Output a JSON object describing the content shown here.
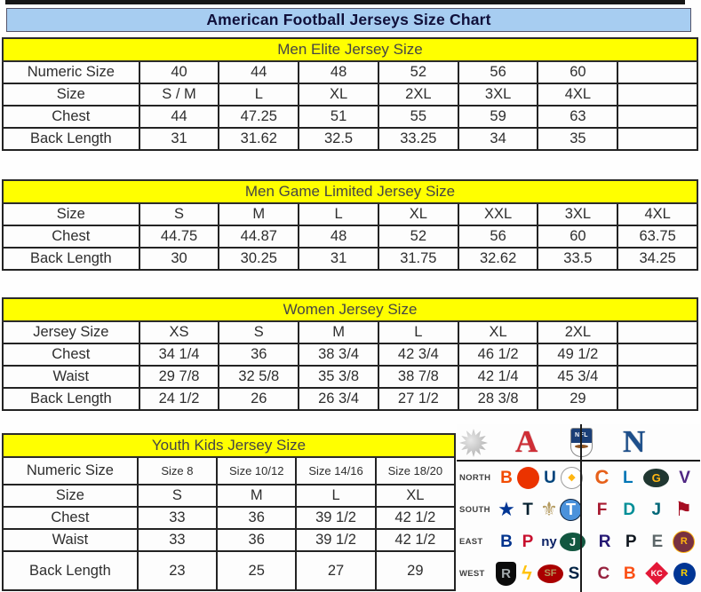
{
  "page": {
    "title": "American Football Jerseys Size Chart"
  },
  "colors": {
    "title_bar_bg": "#a7cdf1",
    "section_header_bg": "#ffff00",
    "table_border": "#232323",
    "text": "#2e2e2e",
    "afc_red": "#cf2e36",
    "nfc_blue": "#1d4f8b",
    "nfl_shield_blue": "#1b3f77"
  },
  "tables": [
    {
      "id": "men-elite",
      "header": "Men Elite Jersey Size",
      "rows": [
        {
          "label": "Numeric Size",
          "cells": [
            "40",
            "44",
            "48",
            "52",
            "56",
            "60",
            ""
          ]
        },
        {
          "label": "Size",
          "cells": [
            "S / M",
            "L",
            "XL",
            "2XL",
            "3XL",
            "4XL",
            ""
          ]
        },
        {
          "label": "Chest",
          "cells": [
            "44",
            "47.25",
            "51",
            "55",
            "59",
            "63",
            ""
          ]
        },
        {
          "label": "Back Length",
          "cells": [
            "31",
            "31.62",
            "32.5",
            "33.25",
            "34",
            "35",
            ""
          ]
        }
      ]
    },
    {
      "id": "men-game-limited",
      "header": "Men Game Limited Jersey Size",
      "rows": [
        {
          "label": "Size",
          "cells": [
            "S",
            "M",
            "L",
            "XL",
            "XXL",
            "3XL",
            "4XL"
          ]
        },
        {
          "label": "Chest",
          "cells": [
            "44.75",
            "44.87",
            "48",
            "52",
            "56",
            "60",
            "63.75"
          ]
        },
        {
          "label": "Back Length",
          "cells": [
            "30",
            "30.25",
            "31",
            "31.75",
            "32.62",
            "33.5",
            "34.25"
          ]
        }
      ]
    },
    {
      "id": "women",
      "header": "Women Jersey Size",
      "rows": [
        {
          "label": "Jersey Size",
          "cells": [
            "XS",
            "S",
            "M",
            "L",
            "XL",
            "2XL",
            ""
          ]
        },
        {
          "label": "Chest",
          "cells": [
            "34 1/4",
            "36",
            "38 3/4",
            "42 3/4",
            "46 1/2",
            "49 1/2",
            ""
          ]
        },
        {
          "label": "Waist",
          "cells": [
            "29 7/8",
            "32 5/8",
            "35 3/8",
            "38 7/8",
            "42 1/4",
            "45 3/4",
            ""
          ]
        },
        {
          "label": "Back Length",
          "cells": [
            "24 1/2",
            "26",
            "26 3/4",
            "27 1/2",
            "28 3/8",
            "29",
            ""
          ]
        }
      ]
    },
    {
      "id": "youth",
      "header": "Youth Kids Jersey Size",
      "rows": [
        {
          "label": "Numeric Size",
          "cells": [
            "Size 8",
            "Size 10/12",
            "Size 14/16",
            "Size 18/20"
          ]
        },
        {
          "label": "Size",
          "cells": [
            "S",
            "M",
            "L",
            "XL"
          ]
        },
        {
          "label": "Chest",
          "cells": [
            "33",
            "36",
            "39 1/2",
            "42 1/2"
          ]
        },
        {
          "label": "Waist",
          "cells": [
            "33",
            "36",
            "39 1/2",
            "42 1/2"
          ]
        },
        {
          "label": "Back Length",
          "cells": [
            "23",
            "25",
            "27",
            "29"
          ]
        }
      ]
    }
  ],
  "logo_panel": {
    "afc_letter": "A",
    "nfc_letter": "N",
    "nfl_label": "NFL",
    "rows": [
      {
        "label": "NORTH",
        "teams": [
          {
            "name": "bengals-logo",
            "glyph": "B",
            "fg": "#f24c02",
            "bg": "",
            "shape": "glyph-md"
          },
          {
            "name": "browns-logo",
            "glyph": "",
            "fg": "#ffffff",
            "bg": "#eb3300",
            "shape": "circle"
          },
          {
            "name": "colts-logo",
            "glyph": "U",
            "fg": "#01447c",
            "bg": "",
            "shape": "glyph-md"
          },
          {
            "name": "steelers-logo",
            "glyph": "◆",
            "fg": "#ffb612",
            "bg": "#ffffff",
            "border": "1px solid #9a9a9a",
            "shape": "circle-badge"
          },
          {
            "name": "bears-logo",
            "glyph": "C",
            "fg": "#e6601a",
            "bg": "",
            "shape": "glyph-lg"
          },
          {
            "name": "lions-logo",
            "glyph": "L",
            "fg": "#0076b6",
            "bg": "",
            "shape": "glyph-md"
          },
          {
            "name": "packers-logo",
            "glyph": "G",
            "fg": "#ffb612",
            "bg": "#203731",
            "shape": "oval"
          },
          {
            "name": "vikings-logo",
            "glyph": "V",
            "fg": "#4f2683",
            "bg": "",
            "shape": "glyph-md"
          }
        ]
      },
      {
        "label": "SOUTH",
        "teams": [
          {
            "name": "cowboys-logo",
            "glyph": "★",
            "fg": "#003594",
            "bg": "",
            "shape": "glyph-lg"
          },
          {
            "name": "texans-logo",
            "glyph": "T",
            "fg": "#03202f",
            "bg": "",
            "shape": "glyph-md"
          },
          {
            "name": "saints-logo",
            "glyph": "⚜",
            "fg": "#b3995d",
            "bg": "",
            "shape": "glyph-lg"
          },
          {
            "name": "titans-logo",
            "glyph": "T",
            "fg": "#ffffff",
            "bg": "#4b92db",
            "border": "1px solid #0c2340",
            "shape": "circle"
          },
          {
            "name": "falcons-logo",
            "glyph": "F",
            "fg": "#a71930",
            "bg": "",
            "shape": "glyph-md"
          },
          {
            "name": "dolphins-logo",
            "glyph": "D",
            "fg": "#008e97",
            "bg": "",
            "shape": "glyph-md"
          },
          {
            "name": "jaguars-logo",
            "glyph": "J",
            "fg": "#006778",
            "bg": "",
            "shape": "glyph-md"
          },
          {
            "name": "buccaneers-logo",
            "glyph": "⚑",
            "fg": "#a50d22",
            "bg": "",
            "shape": "glyph-lg"
          }
        ]
      },
      {
        "label": "EAST",
        "teams": [
          {
            "name": "bills-logo",
            "glyph": "B",
            "fg": "#00338d",
            "bg": "",
            "shape": "glyph-md"
          },
          {
            "name": "patriots-logo",
            "glyph": "P",
            "fg": "#c8102e",
            "bg": "",
            "shape": "glyph-md"
          },
          {
            "name": "giants-logo",
            "glyph": "ny",
            "fg": "#0b2265",
            "bg": "",
            "shape": "two-letter"
          },
          {
            "name": "jets-logo",
            "glyph": "J",
            "fg": "#ffffff",
            "bg": "#125740",
            "shape": "oval"
          },
          {
            "name": "ravens-logo",
            "glyph": "R",
            "fg": "#241773",
            "bg": "",
            "shape": "glyph-md"
          },
          {
            "name": "panthers-logo",
            "glyph": "P",
            "fg": "#101820",
            "bg": "",
            "shape": "glyph-md"
          },
          {
            "name": "eagles-logo",
            "glyph": "E",
            "fg": "#5c6668",
            "bg": "",
            "shape": "glyph-md"
          },
          {
            "name": "redskins-logo",
            "glyph": "R",
            "fg": "#ffb612",
            "bg": "#773141",
            "border": "1px solid #ffb612",
            "shape": "circle-badge"
          }
        ]
      },
      {
        "label": "WEST",
        "teams": [
          {
            "name": "raiders-logo",
            "glyph": "R",
            "fg": "#a5acaf",
            "bg": "#0b0b0b",
            "shape": "shield"
          },
          {
            "name": "chargers-logo",
            "glyph": "ϟ",
            "fg": "#ffc20e",
            "bg": "",
            "shape": "glyph-lg"
          },
          {
            "name": "fortyniners-logo",
            "glyph": "SF",
            "fg": "#b3995d",
            "bg": "#aa0000",
            "shape": "oval-sm"
          },
          {
            "name": "seahawks-logo",
            "glyph": "S",
            "fg": "#002244",
            "bg": "",
            "shape": "glyph-md"
          },
          {
            "name": "cardinals-logo",
            "glyph": "C",
            "fg": "#97233f",
            "bg": "",
            "shape": "glyph-md"
          },
          {
            "name": "broncos-logo",
            "glyph": "B",
            "fg": "#fb4f14",
            "bg": "",
            "shape": "glyph-md"
          },
          {
            "name": "chiefs-logo",
            "glyph": "KC",
            "fg": "#ffffff",
            "bg": "#e31837",
            "shape": "diamond"
          },
          {
            "name": "rams-logo",
            "glyph": "R",
            "fg": "#ffd100",
            "bg": "#003594",
            "shape": "circle-badge"
          }
        ]
      }
    ]
  }
}
